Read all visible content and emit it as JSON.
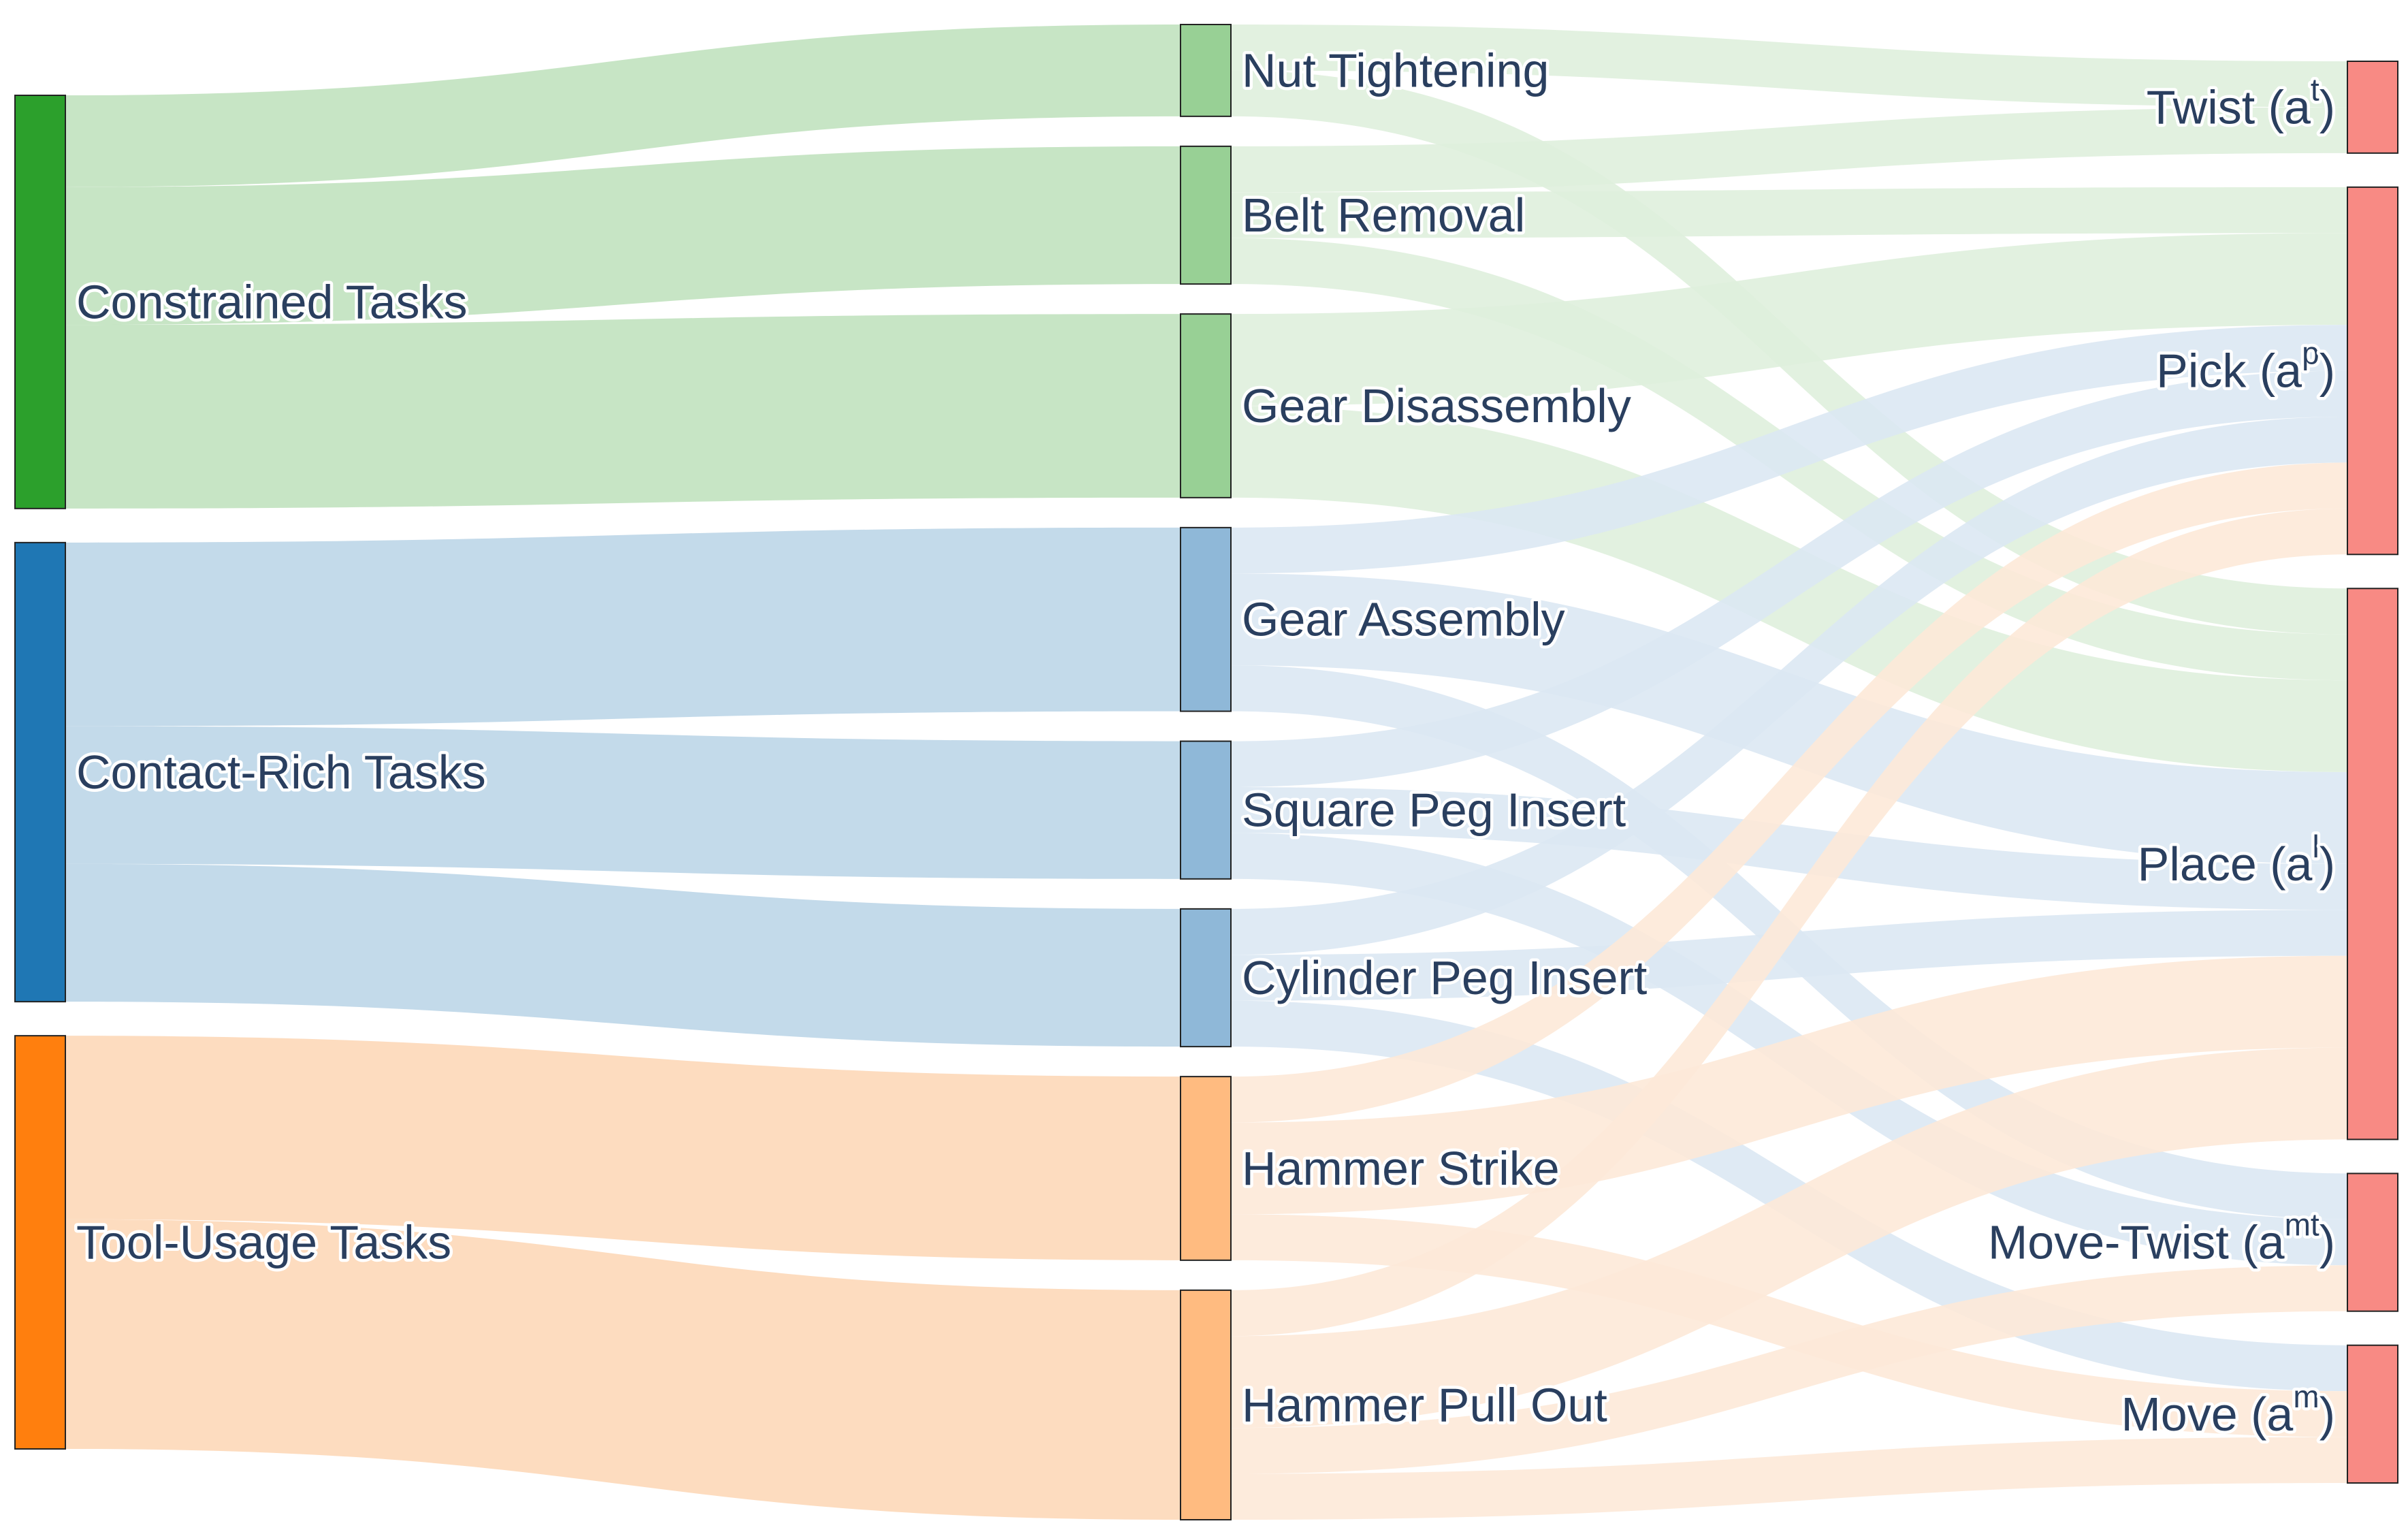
{
  "diagram": {
    "type": "sankey",
    "columns": [
      [
        {
          "id": "constrained",
          "label": "Constrained Tasks",
          "color": "#2ca02c"
        },
        {
          "id": "contact",
          "label": "Contact-Rich Tasks",
          "color": "#1f77b4"
        },
        {
          "id": "tool",
          "label": "Tool-Usage Tasks",
          "color": "#ff7f0e"
        }
      ],
      [
        {
          "id": "nut",
          "label": "Nut Tightening",
          "color": "#98d095"
        },
        {
          "id": "belt",
          "label": "Belt Removal",
          "color": "#98d095"
        },
        {
          "id": "geardis",
          "label": "Gear Disassembly",
          "color": "#98d095"
        },
        {
          "id": "gearasm",
          "label": "Gear Assembly",
          "color": "#8fb8d8"
        },
        {
          "id": "square",
          "label": "Square Peg Insert",
          "color": "#8fb8d8"
        },
        {
          "id": "cylinder",
          "label": "Cylinder Peg Insert",
          "color": "#8fb8d8"
        },
        {
          "id": "hstrike",
          "label": "Hammer Strike",
          "color": "#ffbb80"
        },
        {
          "id": "hpull",
          "label": "Hammer Pull Out",
          "color": "#ffbb80"
        }
      ],
      [
        {
          "id": "twist",
          "label": "Twist (a",
          "sup": "t",
          "close": ")",
          "color": "#f88a84"
        },
        {
          "id": "pick",
          "label": "Pick (a",
          "sup": "p",
          "close": ")",
          "color": "#f88a84"
        },
        {
          "id": "place",
          "label": "Place (a",
          "sup": "l",
          "close": ")",
          "color": "#f88a84"
        },
        {
          "id": "movetwist",
          "label": "Move-Twist (a",
          "sup": "mt",
          "close": ")",
          "color": "#f88a84"
        },
        {
          "id": "move",
          "label": "Move (a",
          "sup": "m",
          "close": ")",
          "color": "#f88a84"
        }
      ]
    ],
    "links": [
      {
        "source": "constrained",
        "target": "nut",
        "value": 2,
        "color": "#c1e2bf"
      },
      {
        "source": "constrained",
        "target": "belt",
        "value": 3,
        "color": "#c1e2bf"
      },
      {
        "source": "constrained",
        "target": "geardis",
        "value": 4,
        "color": "#c1e2bf"
      },
      {
        "source": "contact",
        "target": "gearasm",
        "value": 4,
        "color": "#bcd6e8"
      },
      {
        "source": "contact",
        "target": "square",
        "value": 3,
        "color": "#bcd6e8"
      },
      {
        "source": "contact",
        "target": "cylinder",
        "value": 3,
        "color": "#bcd6e8"
      },
      {
        "source": "tool",
        "target": "hstrike",
        "value": 4,
        "color": "#fdd8b8"
      },
      {
        "source": "tool",
        "target": "hpull",
        "value": 5,
        "color": "#fdd8b8"
      },
      {
        "source": "nut",
        "target": "twist",
        "value": 1,
        "color": "#dff0dd"
      },
      {
        "source": "nut",
        "target": "place",
        "value": 1,
        "color": "#dff0dd"
      },
      {
        "source": "belt",
        "target": "twist",
        "value": 1,
        "color": "#dff0dd"
      },
      {
        "source": "belt",
        "target": "pick",
        "value": 1,
        "color": "#dff0dd"
      },
      {
        "source": "belt",
        "target": "place",
        "value": 1,
        "color": "#dff0dd"
      },
      {
        "source": "geardis",
        "target": "pick",
        "value": 2,
        "color": "#dff0dd"
      },
      {
        "source": "geardis",
        "target": "place",
        "value": 2,
        "color": "#dff0dd"
      },
      {
        "source": "gearasm",
        "target": "pick",
        "value": 1,
        "color": "#dbe8f3"
      },
      {
        "source": "gearasm",
        "target": "place",
        "value": 2,
        "color": "#dbe8f3"
      },
      {
        "source": "gearasm",
        "target": "movetwist",
        "value": 1,
        "color": "#dbe8f3"
      },
      {
        "source": "square",
        "target": "pick",
        "value": 1,
        "color": "#dbe8f3"
      },
      {
        "source": "square",
        "target": "place",
        "value": 1,
        "color": "#dbe8f3"
      },
      {
        "source": "square",
        "target": "movetwist",
        "value": 1,
        "color": "#dbe8f3"
      },
      {
        "source": "cylinder",
        "target": "pick",
        "value": 1,
        "color": "#dbe8f3"
      },
      {
        "source": "cylinder",
        "target": "place",
        "value": 1,
        "color": "#dbe8f3"
      },
      {
        "source": "cylinder",
        "target": "move",
        "value": 1,
        "color": "#dbe8f3"
      },
      {
        "source": "hstrike",
        "target": "pick",
        "value": 1,
        "color": "#fde9d8"
      },
      {
        "source": "hstrike",
        "target": "place",
        "value": 2,
        "color": "#fde9d8"
      },
      {
        "source": "hstrike",
        "target": "move",
        "value": 1,
        "color": "#fde9d8"
      },
      {
        "source": "hpull",
        "target": "pick",
        "value": 1,
        "color": "#fde9d8"
      },
      {
        "source": "hpull",
        "target": "place",
        "value": 2,
        "color": "#fde9d8"
      },
      {
        "source": "hpull",
        "target": "movetwist",
        "value": 1,
        "color": "#fde9d8"
      },
      {
        "source": "hpull",
        "target": "move",
        "value": 1,
        "color": "#fde9d8"
      }
    ]
  }
}
